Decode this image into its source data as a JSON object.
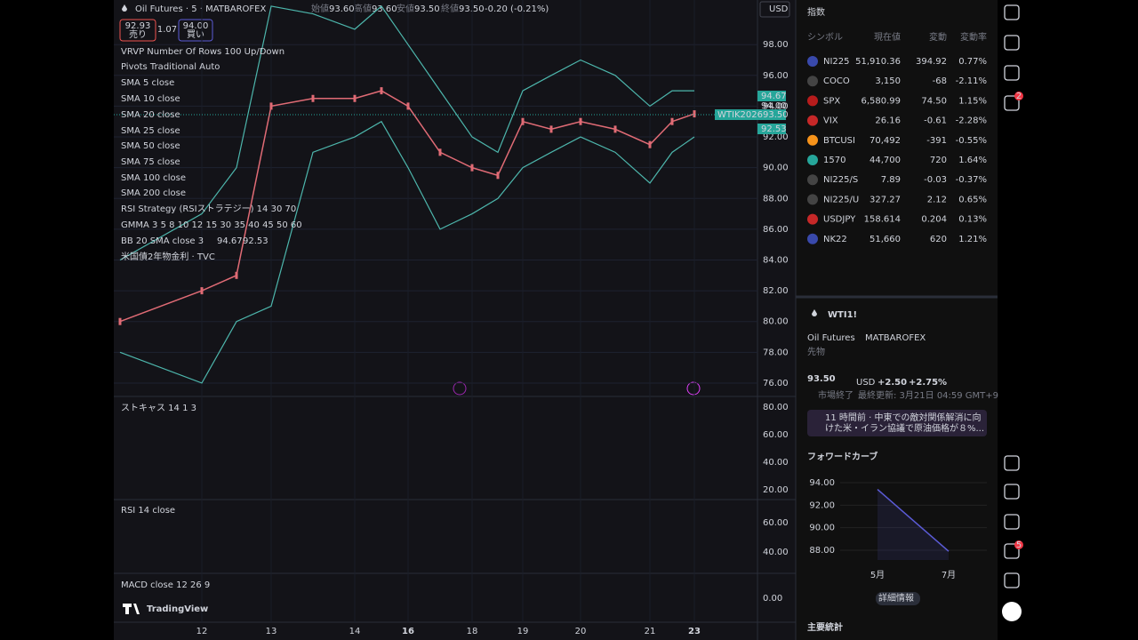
{
  "header": {
    "symbol": "Oil Futures · 5 · MATBAROFEX",
    "ohlc": [
      [
        "始値",
        "93.60"
      ],
      [
        "高値",
        "93.60"
      ],
      [
        "安値",
        "93.50"
      ],
      [
        "終値",
        "93.50"
      ]
    ],
    "change": "-0.20 (-0.21%)",
    "sell_price": "92.93",
    "sell_label": "売り",
    "spread": "1.07",
    "buy_price": "94.00",
    "buy_label": "買い",
    "currency": "USD"
  },
  "indicators": [
    "VRVP Number Of Rows 100 Up/Down",
    "Pivots Traditional Auto",
    "SMA 5 close",
    "SMA 10 close",
    "SMA 20 close",
    "SMA 25 close",
    "SMA 50 close",
    "SMA 75 close",
    "SMA 100 close",
    "SMA 200 close",
    "RSI Strategy (RSIストラテジー) 14 30 70",
    "GMMA 3 5 8 10 12 15 30 35 40 45 50 60",
    "BB 20 SMA close 3",
    "米国債2年物金利 · TVC"
  ],
  "bb_values": [
    "94.67",
    "92.53"
  ],
  "price_badges": {
    "bb_upper": "94.67",
    "mark": "94.00",
    "last_label": "WTIK2026",
    "last": "93.50",
    "bb_lower": "92.53"
  },
  "panes": {
    "stoch": {
      "label": "ストキャス 14 1 3",
      "ticks": [
        "80.00",
        "60.00",
        "40.00",
        "20.00"
      ]
    },
    "rsi": {
      "label": "RSI 14 close",
      "ticks": [
        "60.00",
        "40.00"
      ]
    },
    "macd": {
      "label": "MACD close 12 26 9",
      "ticks": [
        "0.00"
      ]
    }
  },
  "logo": "TradingView",
  "chart_data": [
    {
      "type": "line",
      "categories": [
        null,
        "12",
        null,
        "13",
        null,
        "14",
        null,
        "16",
        null,
        "18",
        null,
        "19",
        null,
        "20",
        null,
        "21",
        null,
        "23"
      ],
      "series": [
        {
          "name": "BB upper",
          "color": "#4db6ac",
          "values": [
            84,
            87,
            90,
            100.5,
            100,
            99,
            100.5,
            98,
            95,
            92,
            91,
            95,
            96,
            97,
            96,
            94,
            95,
            95
          ]
        },
        {
          "name": "BB lower",
          "color": "#4db6ac",
          "values": [
            78,
            76,
            80,
            81,
            91,
            92,
            93,
            90,
            86,
            87,
            88,
            90,
            91,
            92,
            91,
            89,
            91,
            92
          ]
        },
        {
          "name": "close",
          "color": "#e06b75",
          "values": [
            80,
            82,
            83,
            94,
            94.5,
            94.5,
            95,
            94,
            91,
            90,
            89.5,
            93,
            92.5,
            93,
            92.5,
            91.5,
            93,
            93.5
          ]
        }
      ],
      "ylim": [
        75.13,
        100.9
      ],
      "yticks": [
        {
          "value": 76,
          "label": "76.00"
        },
        {
          "value": 78,
          "label": "78.00"
        },
        {
          "value": 80,
          "label": "80.00"
        },
        {
          "value": 82,
          "label": "82.00"
        },
        {
          "value": 84,
          "label": "84.00"
        },
        {
          "value": 86,
          "label": "86.00"
        },
        {
          "value": 88,
          "label": "88.00"
        },
        {
          "value": 90,
          "label": "90.00"
        },
        {
          "value": 92,
          "label": "92.00"
        },
        {
          "value": 94,
          "label": "94.00"
        },
        {
          "value": 96,
          "label": "96.00"
        },
        {
          "value": 98,
          "label": "98.00"
        }
      ],
      "grid": true
    },
    {
      "type": "line",
      "title": "フォワードカーブ",
      "categories": [
        "5月",
        "7月"
      ],
      "values": [
        93.4,
        87.9
      ],
      "color": "#5b5bd6",
      "ylim": [
        87.13,
        94.63
      ],
      "yticks": [
        {
          "value": 88,
          "label": "88.00"
        },
        {
          "value": 90,
          "label": "90.00"
        },
        {
          "value": 92,
          "label": "92.00"
        },
        {
          "value": 94,
          "label": "94.00"
        }
      ],
      "grid": true
    }
  ],
  "watchlist": {
    "title": "指数",
    "columns": [
      "シンボル",
      "現在値",
      "変動",
      "変動率"
    ],
    "rows": [
      [
        "NI225",
        "51,910.36",
        "394.92",
        "0.77%",
        "#26a69a"
      ],
      [
        "COCO",
        "3,150",
        "-68",
        "-2.11%",
        "#ef5350"
      ],
      [
        "SPX",
        "6,580.99",
        "74.50",
        "1.15%",
        "#26a69a"
      ],
      [
        "VIX",
        "26.16",
        "-0.61",
        "-2.28%",
        "#ef5350"
      ],
      [
        "BTCUSI",
        "70,492",
        "-391",
        "-0.55%",
        "#ef5350"
      ],
      [
        "1570",
        "44,700",
        "720",
        "1.64%",
        "#26a69a"
      ],
      [
        "NI225/S",
        "7.89",
        "-0.03",
        "-0.37%",
        "#ef5350"
      ],
      [
        "NI225/U",
        "327.27",
        "2.12",
        "0.65%",
        "#26a69a"
      ],
      [
        "USDJPY",
        "158.614",
        "0.204",
        "0.13%",
        "#26a69a"
      ],
      [
        "NK22",
        "51,660",
        "620",
        "1.21%",
        "#26a69a"
      ]
    ]
  },
  "detail": {
    "symbol": "WTI1!",
    "name": "Oil Futures",
    "exchange": "MATBAROFEX",
    "kind": "先物",
    "price": "93.50",
    "unit": "USD",
    "change": "+2.50",
    "change_pct": "+2.75%",
    "status": "市場終了",
    "updated": "最終更新: 3月21日 04:59 GMT+9",
    "news": [
      "11 時間前 · 中東での敵対関係解消に向",
      "けた米・イラン協議で原油価格が８%..."
    ],
    "more": "詳細情報",
    "stats": "主要統計"
  },
  "sidebar_badges": [
    "2",
    "5"
  ]
}
